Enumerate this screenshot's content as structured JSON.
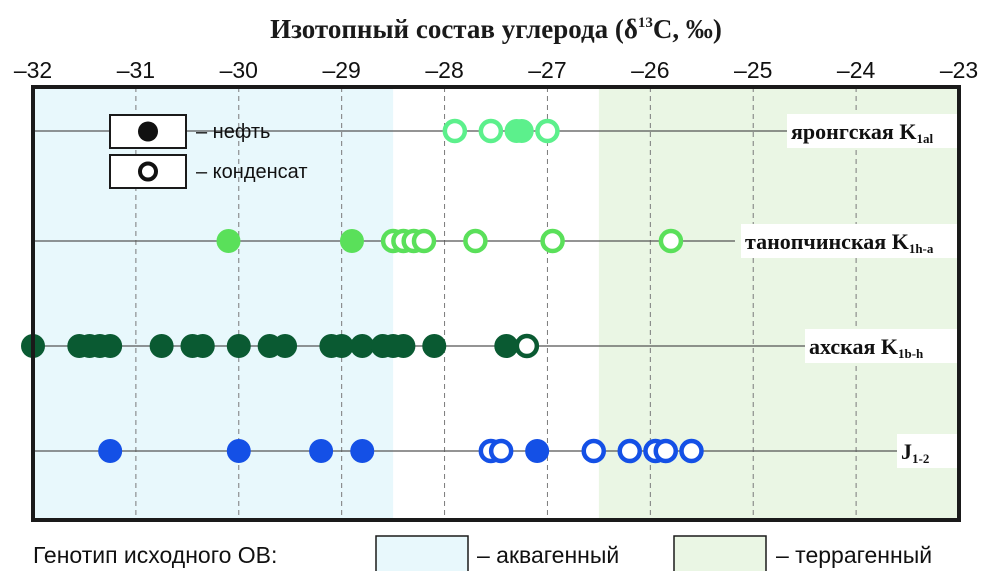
{
  "chart_data": {
    "type": "scatter",
    "title": "Изотопный состав углерода (δ¹³C, ‰)",
    "title_parts": {
      "pre": "Изотопный состав углерода (δ",
      "sup": "13",
      "post": "C, ‰)"
    },
    "xlim": [
      -32,
      -23
    ],
    "x_ticks": [
      -32,
      -31,
      -30,
      -29,
      -28,
      -27,
      -26,
      -25,
      -24,
      -23
    ],
    "x_tick_labels": [
      "–32",
      "–31",
      "–30",
      "–29",
      "–28",
      "–27",
      "–26",
      "–25",
      "–24",
      "–23"
    ],
    "grid": true,
    "regions": [
      {
        "name": "аквагенный",
        "x_range": [
          -32,
          -28.5
        ],
        "color": "#e8f8fc"
      },
      {
        "name": "террагенный",
        "x_range": [
          -26.5,
          -23
        ],
        "color": "#eaf6e4"
      }
    ],
    "legend": {
      "placement": "top-left",
      "items": [
        {
          "marker": "filled",
          "label": "– нефть"
        },
        {
          "marker": "open",
          "label": "– конденсат"
        }
      ]
    },
    "footer": {
      "prefix": "Генотип исходного ОВ:",
      "aqua_label": "– аквагенный",
      "terra_label": "– террагенный"
    },
    "series": [
      {
        "name": "яронгская",
        "index": "1al",
        "color": "#5cf08c",
        "filled": [
          -27.3,
          -27.25
        ],
        "open": [
          -27.9,
          -27.55,
          -27.0
        ]
      },
      {
        "name": "танопчинская",
        "index": "1h-a",
        "color": "#5ae05a",
        "filled": [
          -30.1,
          -28.9
        ],
        "open": [
          -28.5,
          -28.4,
          -28.3,
          -28.2,
          -27.7,
          -26.95,
          -25.8
        ]
      },
      {
        "name": "ахская",
        "index": "1b-h",
        "color": "#0a5a32",
        "filled": [
          -32.0,
          -31.55,
          -31.45,
          -31.35,
          -31.25,
          -30.75,
          -30.45,
          -30.35,
          -30.0,
          -29.7,
          -29.55,
          -29.1,
          -29.0,
          -28.8,
          -28.6,
          -28.5,
          -28.4,
          -28.1,
          -27.4
        ],
        "open": [
          -27.2
        ]
      },
      {
        "name": "J",
        "index": "1-2",
        "color": "#1450e6",
        "filled": [
          -31.25,
          -30.0,
          -29.2,
          -28.8,
          -27.1
        ],
        "open": [
          -27.55,
          -27.45,
          -26.55,
          -26.2,
          -25.95,
          -25.85,
          -25.6
        ]
      }
    ]
  }
}
